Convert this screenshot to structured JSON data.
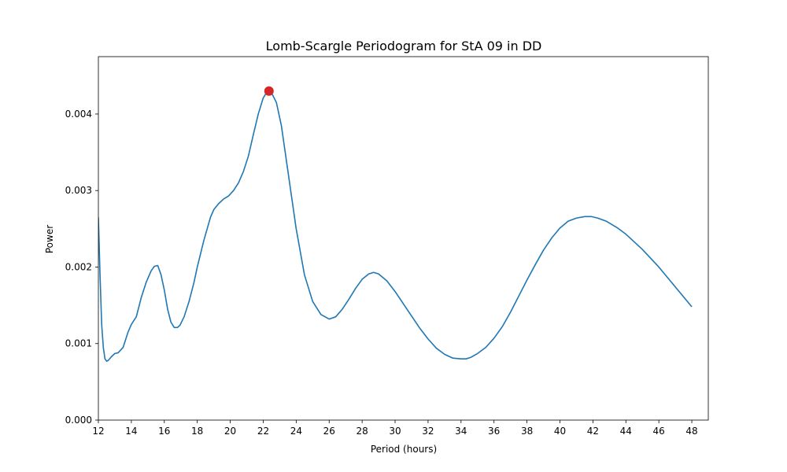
{
  "chart_data": {
    "type": "line",
    "title": "Lomb-Scargle Periodogram for StA 09 in DD",
    "xlabel": "Period (hours)",
    "ylabel": "Power",
    "xlim": [
      12,
      49
    ],
    "ylim": [
      0,
      0.00475
    ],
    "xticks": [
      12,
      14,
      16,
      18,
      20,
      22,
      24,
      26,
      28,
      30,
      32,
      34,
      36,
      38,
      40,
      42,
      44,
      46,
      48
    ],
    "xtick_labels": [
      "12",
      "14",
      "16",
      "18",
      "20",
      "22",
      "24",
      "26",
      "28",
      "30",
      "32",
      "34",
      "36",
      "38",
      "40",
      "42",
      "44",
      "46",
      "48"
    ],
    "yticks": [
      0,
      0.001,
      0.002,
      0.003,
      0.004
    ],
    "ytick_labels": [
      "0.000",
      "0.001",
      "0.002",
      "0.003",
      "0.004"
    ],
    "grid": false,
    "series": [
      {
        "color": "#1f77b4",
        "x": [
          12.0,
          12.1,
          12.2,
          12.3,
          12.4,
          12.5,
          12.6,
          12.8,
          13.0,
          13.2,
          13.5,
          13.8,
          14.0,
          14.3,
          14.6,
          14.9,
          15.2,
          15.4,
          15.6,
          15.8,
          16.0,
          16.2,
          16.4,
          16.6,
          16.8,
          16.95,
          17.2,
          17.5,
          17.8,
          18.0,
          18.4,
          18.8,
          19.0,
          19.3,
          19.6,
          19.9,
          20.2,
          20.5,
          20.8,
          21.1,
          21.4,
          21.7,
          22.0,
          22.2,
          22.35,
          22.5,
          22.8,
          23.1,
          23.5,
          24.0,
          24.5,
          25.0,
          25.5,
          26.0,
          26.4,
          26.8,
          27.2,
          27.6,
          28.0,
          28.4,
          28.7,
          29.0,
          29.5,
          30.0,
          30.5,
          31.0,
          31.5,
          32.0,
          32.5,
          33.0,
          33.5,
          34.0,
          34.3,
          34.6,
          35.0,
          35.5,
          36.0,
          36.5,
          37.0,
          37.5,
          38.0,
          38.5,
          39.0,
          39.5,
          40.0,
          40.5,
          41.0,
          41.5,
          41.9,
          42.3,
          42.8,
          43.5,
          44.0,
          45.0,
          46.0,
          47.0,
          48.0
        ],
        "y": [
          0.00265,
          0.0019,
          0.00125,
          0.00095,
          0.0008,
          0.00077,
          0.00078,
          0.00083,
          0.00087,
          0.00088,
          0.00095,
          0.00115,
          0.00125,
          0.00135,
          0.0016,
          0.0018,
          0.00195,
          0.00201,
          0.00202,
          0.0019,
          0.0017,
          0.00145,
          0.00128,
          0.00121,
          0.00121,
          0.00124,
          0.00135,
          0.00155,
          0.0018,
          0.002,
          0.00235,
          0.00265,
          0.00275,
          0.00283,
          0.00289,
          0.00293,
          0.003,
          0.0031,
          0.00325,
          0.00345,
          0.00373,
          0.004,
          0.00421,
          0.00428,
          0.0043,
          0.00428,
          0.00415,
          0.00385,
          0.00325,
          0.0025,
          0.0019,
          0.00155,
          0.00138,
          0.00132,
          0.00135,
          0.00145,
          0.00158,
          0.00172,
          0.00184,
          0.00191,
          0.00193,
          0.00191,
          0.00182,
          0.00168,
          0.00152,
          0.00136,
          0.0012,
          0.00106,
          0.00094,
          0.00086,
          0.00081,
          0.0008,
          0.0008,
          0.00082,
          0.00087,
          0.00095,
          0.00107,
          0.00122,
          0.00141,
          0.00162,
          0.00183,
          0.00203,
          0.00222,
          0.00238,
          0.00251,
          0.0026,
          0.00264,
          0.00266,
          0.00266,
          0.00264,
          0.0026,
          0.00251,
          0.00243,
          0.00223,
          0.002,
          0.00174,
          0.00148
        ]
      }
    ],
    "peak": {
      "x": 22.35,
      "y": 0.0043,
      "color": "#d62728"
    }
  }
}
